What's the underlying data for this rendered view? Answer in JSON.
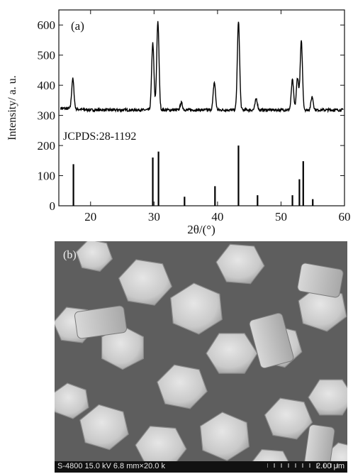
{
  "chart_data": {
    "type": "line",
    "panel_label": "(a)",
    "xlabel": "2θ/(°)",
    "ylabel": "Intensity/ a. u.",
    "xlim": [
      15,
      60
    ],
    "ylim": [
      0,
      650
    ],
    "x_ticks": [
      20,
      30,
      40,
      50,
      60
    ],
    "y_ticks": [
      0,
      100,
      200,
      300,
      400,
      500,
      600
    ],
    "grid": false,
    "series": [
      {
        "type": "line",
        "baseline": 318,
        "peaks": [
          {
            "x": 17.2,
            "y": 418
          },
          {
            "x": 29.8,
            "y": 540
          },
          {
            "x": 30.6,
            "y": 612
          },
          {
            "x": 34.3,
            "y": 342
          },
          {
            "x": 39.5,
            "y": 410
          },
          {
            "x": 43.3,
            "y": 610
          },
          {
            "x": 46.1,
            "y": 355
          },
          {
            "x": 51.8,
            "y": 418
          },
          {
            "x": 52.6,
            "y": 425
          },
          {
            "x": 53.2,
            "y": 545
          },
          {
            "x": 54.9,
            "y": 362
          }
        ]
      },
      {
        "type": "bar",
        "name": "JCPDS:28-1192",
        "sticks": [
          {
            "x": 17.3,
            "y": 138
          },
          {
            "x": 29.8,
            "y": 160
          },
          {
            "x": 30.7,
            "y": 180
          },
          {
            "x": 34.8,
            "y": 30
          },
          {
            "x": 39.6,
            "y": 65
          },
          {
            "x": 43.3,
            "y": 200
          },
          {
            "x": 46.3,
            "y": 35
          },
          {
            "x": 51.8,
            "y": 35
          },
          {
            "x": 52.9,
            "y": 88
          },
          {
            "x": 53.5,
            "y": 148
          },
          {
            "x": 55.0,
            "y": 22
          }
        ]
      }
    ]
  },
  "sem_image": {
    "panel_label": "(b)",
    "info_text": "S-4800 15.0 kV 6.8 mm×20.0 k",
    "scale_text": "2.00 μm"
  }
}
